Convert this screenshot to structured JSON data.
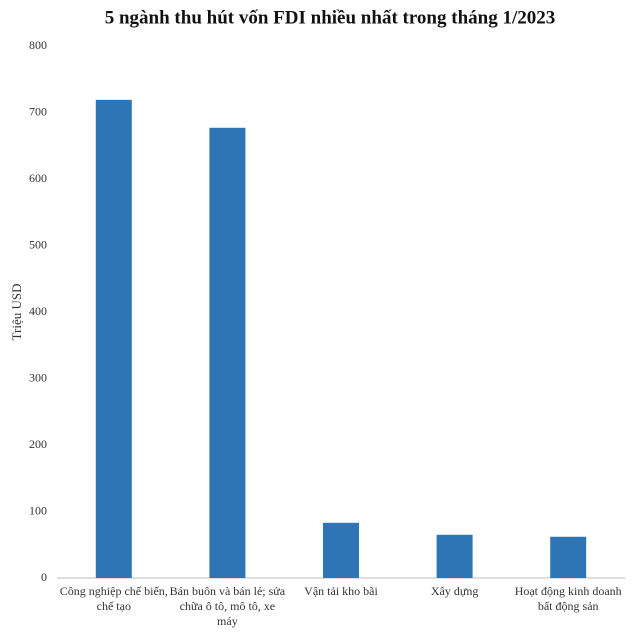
{
  "chart_data": {
    "type": "bar",
    "title": "5 ngành thu hút vốn FDI nhiều nhất trong tháng 1/2023",
    "y_label": "Triệu USD",
    "categories": [
      "Công nghiệp chế biến, chế tạo",
      "Bán buôn và bán lẻ; sửa chữa ô tô, mô tô, xe máy",
      "Vận tải kho bãi",
      "Xây dựng",
      "Hoạt động kinh doanh bất động sản"
    ],
    "values": [
      719,
      677,
      83,
      65,
      62
    ],
    "color": "#2e75b6",
    "ylim": [
      0,
      800
    ],
    "yticks": [
      0,
      100,
      200,
      300,
      400,
      500,
      600,
      700,
      800
    ],
    "grid": false
  }
}
